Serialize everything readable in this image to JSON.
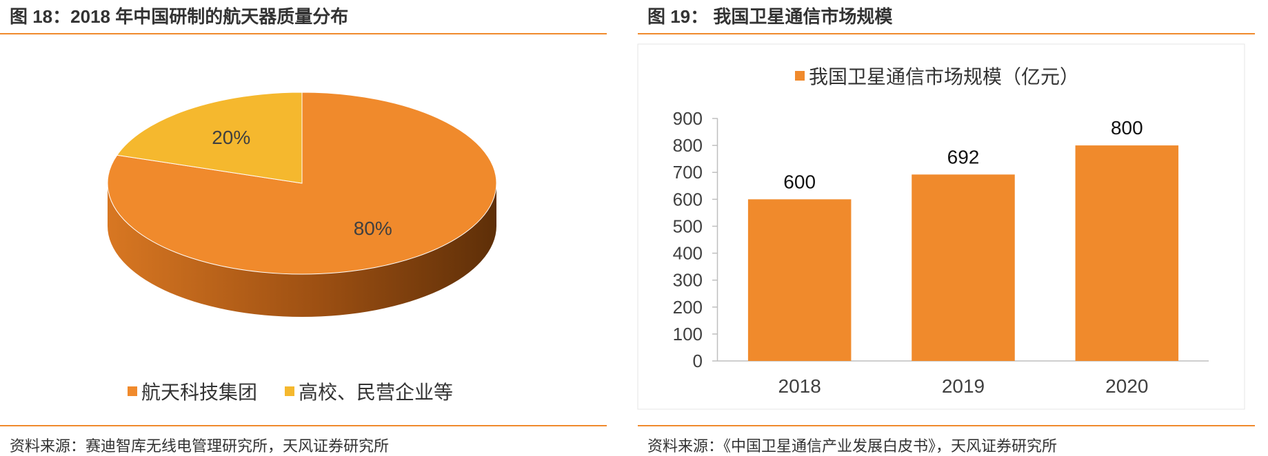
{
  "left": {
    "title": "图 18：2018 年中国研制的航天器质量分布",
    "source": "资料来源：赛迪智库无线电管理研究所，天风证券研究所"
  },
  "right": {
    "title": "图 19：  我国卫星通信市场规模",
    "source": "资料来源：《中国卫星通信产业发展白皮书》，天风证券研究所"
  },
  "colors": {
    "orange": "#f08a2c",
    "orange_dark": "#b85d15",
    "yellow": "#f5b82e",
    "rule": "#f08a2c",
    "axis": "#bfbfbf"
  },
  "chart_data": [
    {
      "type": "pie",
      "style": "3d",
      "slices": [
        {
          "name": "航天科技集团",
          "value": 80,
          "label": "80%",
          "color": "#f08a2c"
        },
        {
          "name": "高校、民营企业等",
          "value": 20,
          "label": "20%",
          "color": "#f5b82e"
        }
      ],
      "legend_position": "bottom"
    },
    {
      "type": "bar",
      "categories": [
        "2018",
        "2019",
        "2020"
      ],
      "series": [
        {
          "name": "我国卫星通信市场规模（亿元）",
          "values": [
            600,
            692,
            800
          ],
          "color": "#f08a2c"
        }
      ],
      "data_labels": [
        "600",
        "692",
        "800"
      ],
      "ylim": [
        0,
        900
      ],
      "yticks": [
        "0",
        "100",
        "200",
        "300",
        "400",
        "500",
        "600",
        "700",
        "800",
        "900"
      ],
      "legend_position": "top",
      "grid": false
    }
  ]
}
